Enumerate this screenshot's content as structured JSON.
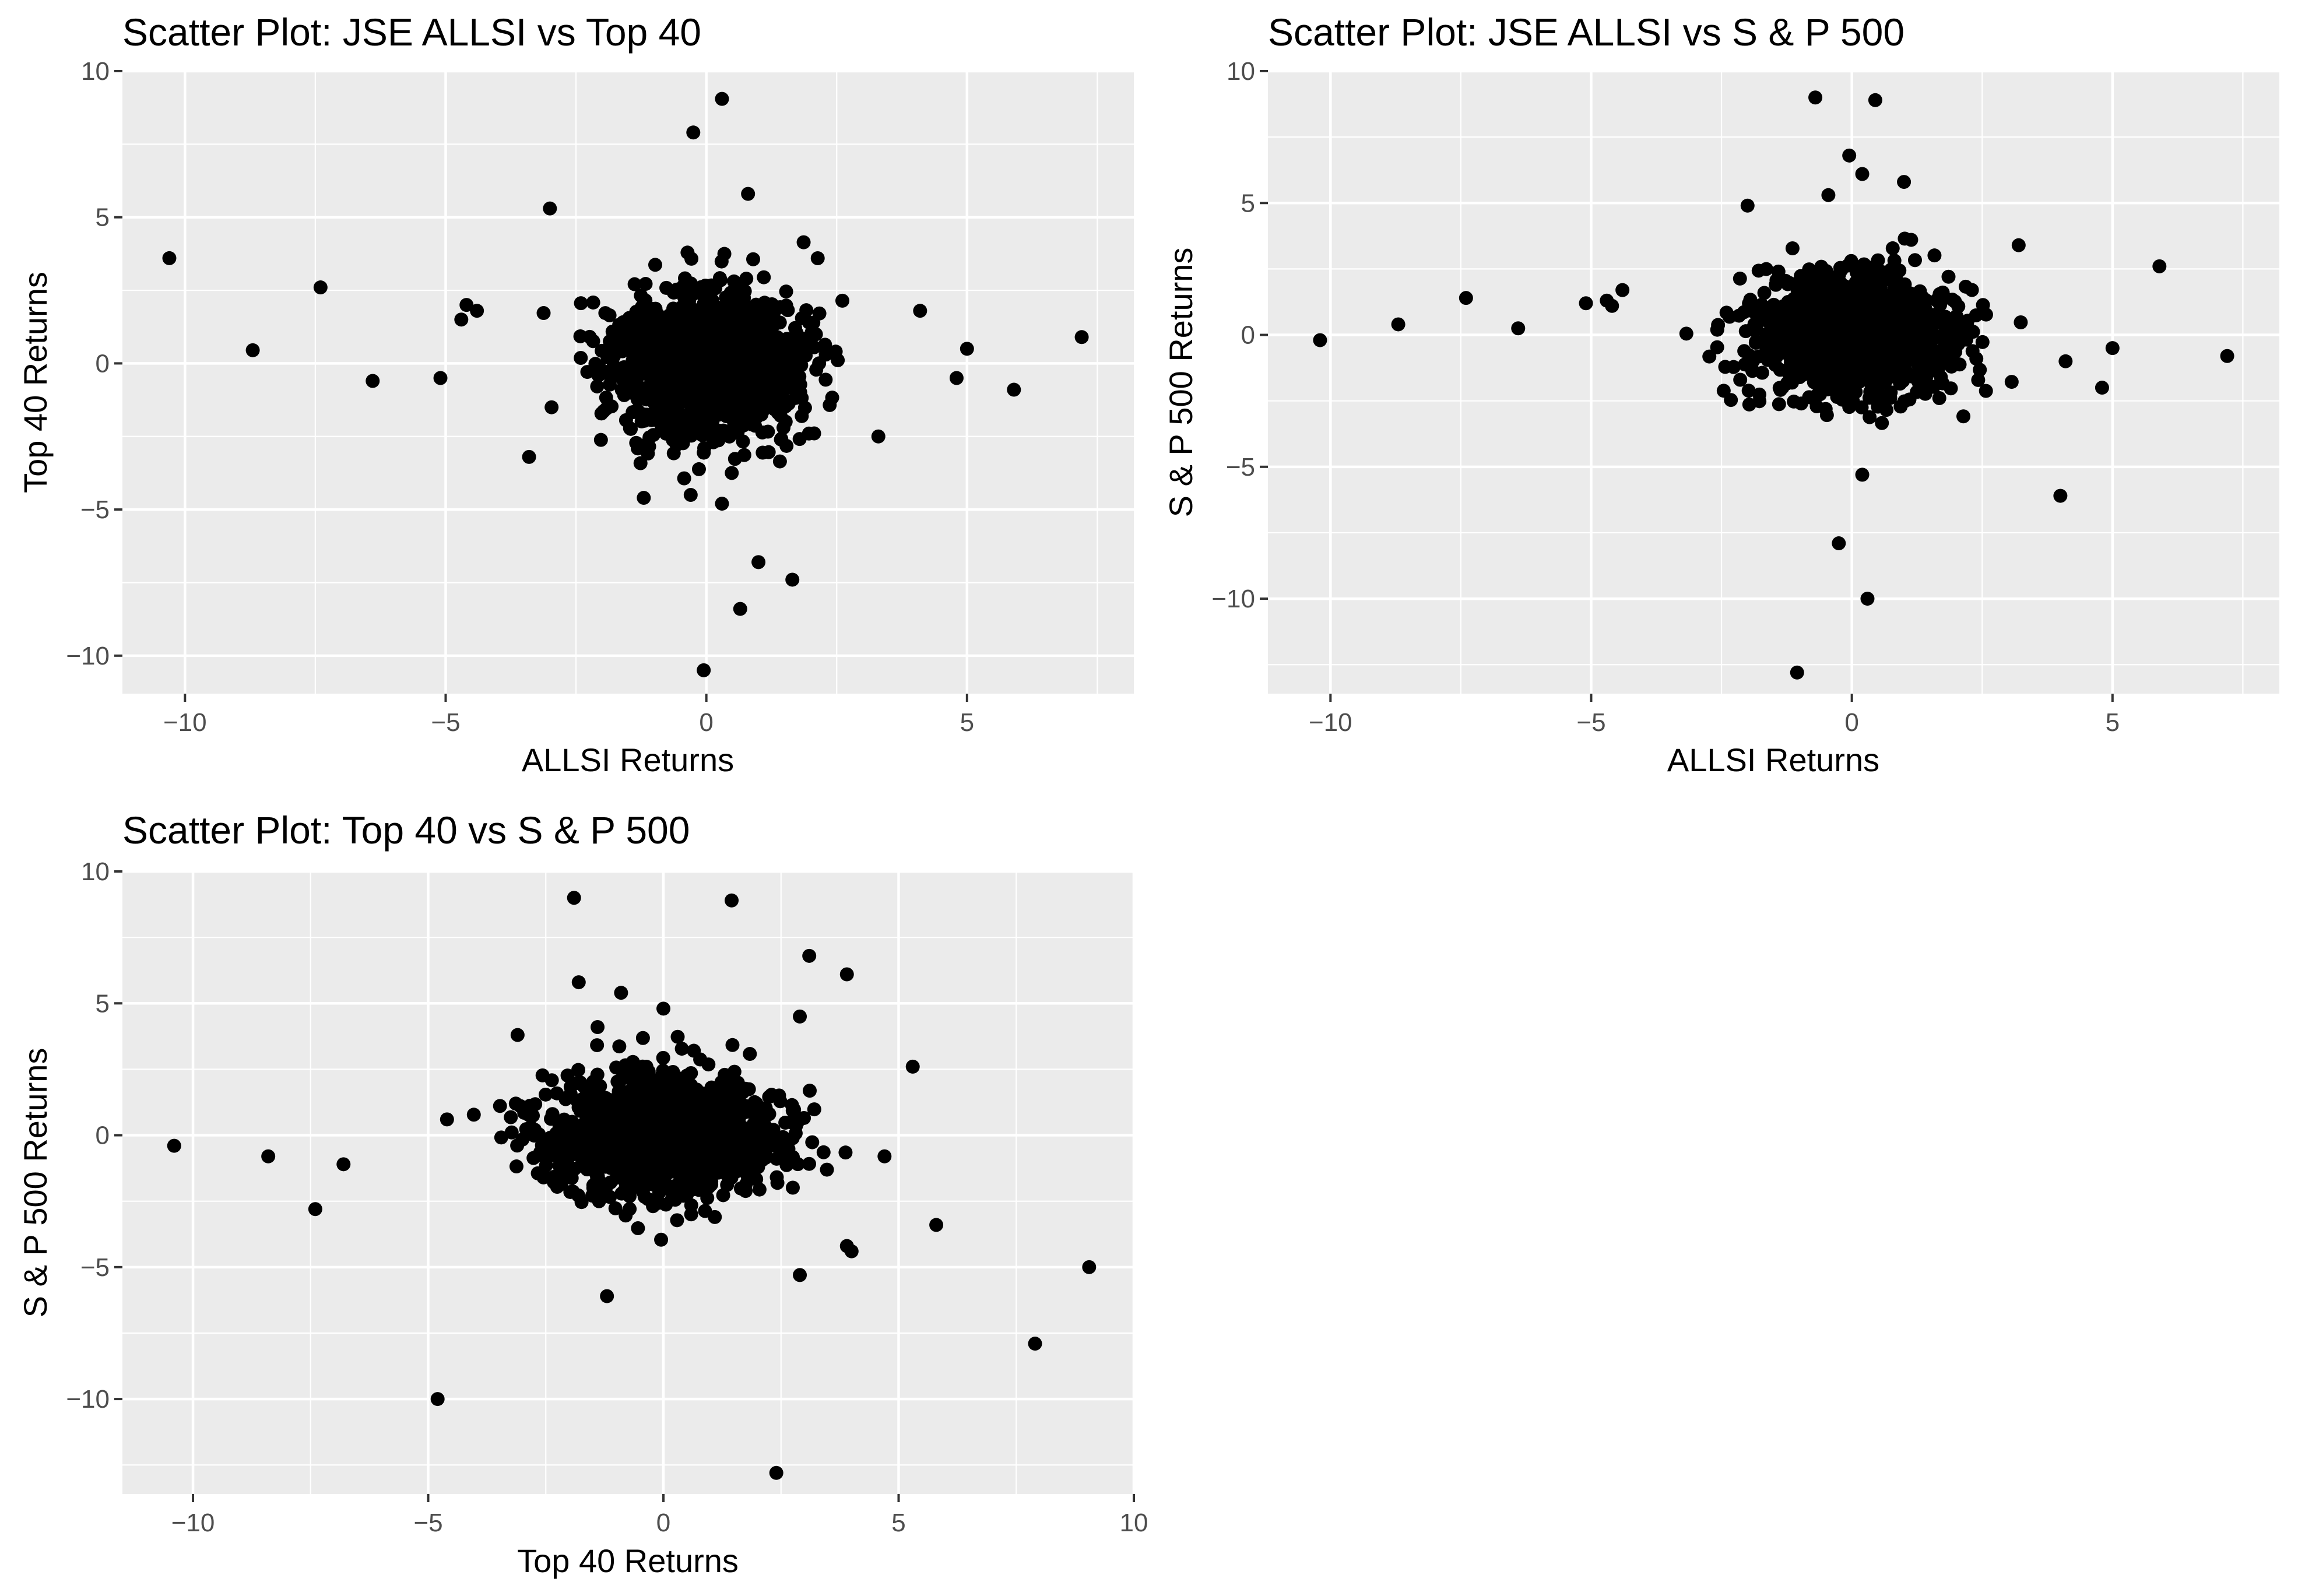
{
  "chart_data": [
    {
      "type": "scatter",
      "title": "Scatter Plot: JSE ALLSI vs Top 40",
      "xlabel": "ALLSI Returns",
      "ylabel": "Top 40 Returns",
      "xlim": [
        -11.2,
        8.2
      ],
      "ylim": [
        -11.3,
        10.0
      ],
      "xticks": [
        -10,
        -5,
        0,
        5
      ],
      "xtick_labels": [
        "−10",
        "−5",
        "0",
        "5"
      ],
      "yticks": [
        -10,
        -5,
        0,
        5,
        10
      ],
      "ytick_labels": [
        "−10",
        "−5",
        "0",
        "5",
        "10"
      ],
      "grid": true,
      "cluster": {
        "n": 1500,
        "sx": 0.9,
        "sy": 1.2,
        "seed": 11
      },
      "points": [
        [
          -10.3,
          3.6
        ],
        [
          -8.7,
          0.45
        ],
        [
          -7.4,
          2.6
        ],
        [
          -6.4,
          -0.6
        ],
        [
          -5.1,
          -0.5
        ],
        [
          -4.7,
          1.5
        ],
        [
          -4.6,
          2.0
        ],
        [
          -4.4,
          1.8
        ],
        [
          -3.4,
          -3.2
        ],
        [
          -3.0,
          5.3
        ],
        [
          -1.2,
          -4.6
        ],
        [
          -0.3,
          -4.5
        ],
        [
          0.3,
          -4.8
        ],
        [
          -0.25,
          7.9
        ],
        [
          0.3,
          9.05
        ],
        [
          0.8,
          5.8
        ],
        [
          1.0,
          -6.8
        ],
        [
          0.65,
          -8.4
        ],
        [
          1.65,
          -7.4
        ],
        [
          -0.05,
          -10.5
        ],
        [
          3.3,
          -2.5
        ],
        [
          4.1,
          1.8
        ],
        [
          4.8,
          -0.5
        ],
        [
          5.0,
          0.5
        ],
        [
          5.9,
          -0.9
        ],
        [
          7.2,
          0.9
        ]
      ]
    },
    {
      "type": "scatter",
      "title": "Scatter Plot: JSE ALLSI vs S & P 500",
      "xlabel": "ALLSI Returns",
      "ylabel": "S & P 500 Returns",
      "xlim": [
        -11.2,
        8.2
      ],
      "ylim": [
        -13.6,
        10.0
      ],
      "xticks": [
        -10,
        -5,
        0,
        5
      ],
      "xtick_labels": [
        "−10",
        "−5",
        "0",
        "5"
      ],
      "yticks": [
        -10,
        -5,
        0,
        5,
        10
      ],
      "ytick_labels": [
        "−10",
        "−5",
        "0",
        "5",
        "10"
      ],
      "grid": true,
      "cluster": {
        "n": 1500,
        "sx": 0.9,
        "sy": 1.1,
        "seed": 23
      },
      "points": [
        [
          -10.2,
          -0.2
        ],
        [
          -8.7,
          0.4
        ],
        [
          -7.4,
          1.4
        ],
        [
          -6.4,
          0.25
        ],
        [
          -5.1,
          1.2
        ],
        [
          -4.7,
          1.3
        ],
        [
          -4.6,
          1.1
        ],
        [
          -4.4,
          1.7
        ],
        [
          -0.7,
          9.0
        ],
        [
          0.45,
          8.9
        ],
        [
          -0.45,
          5.3
        ],
        [
          -0.05,
          6.8
        ],
        [
          0.2,
          6.1
        ],
        [
          1.0,
          5.8
        ],
        [
          -2.0,
          4.9
        ],
        [
          -0.25,
          -7.9
        ],
        [
          0.3,
          -10.0
        ],
        [
          -1.05,
          -12.8
        ],
        [
          0.2,
          -5.3
        ],
        [
          4.0,
          -6.1
        ],
        [
          4.8,
          -2.0
        ],
        [
          4.1,
          -1.0
        ],
        [
          5.0,
          -0.5
        ],
        [
          5.9,
          2.6
        ],
        [
          7.2,
          -0.8
        ],
        [
          3.2,
          3.4
        ]
      ]
    },
    {
      "type": "scatter",
      "title": "Scatter Plot: Top 40 vs S & P 500",
      "xlabel": "Top 40 Returns",
      "ylabel": "S & P 500 Returns",
      "xlim": [
        -11.5,
        10.0
      ],
      "ylim": [
        -13.6,
        10.0
      ],
      "xticks": [
        -10,
        -5,
        0,
        5,
        10
      ],
      "xtick_labels": [
        "−10",
        "−5",
        "0",
        "5",
        "10"
      ],
      "yticks": [
        -10,
        -5,
        0,
        5,
        10
      ],
      "ytick_labels": [
        "−10",
        "−5",
        "0",
        "5",
        "10"
      ],
      "grid": true,
      "cluster": {
        "n": 1500,
        "sx": 1.2,
        "sy": 1.1,
        "seed": 37
      },
      "points": [
        [
          -10.4,
          -0.4
        ],
        [
          -8.4,
          -0.8
        ],
        [
          -7.4,
          -2.8
        ],
        [
          -6.8,
          -1.1
        ],
        [
          -4.8,
          -10.0
        ],
        [
          -4.6,
          0.6
        ],
        [
          -1.9,
          9.0
        ],
        [
          1.45,
          8.9
        ],
        [
          -1.8,
          5.8
        ],
        [
          -0.9,
          5.4
        ],
        [
          -1.4,
          4.1
        ],
        [
          3.1,
          6.8
        ],
        [
          3.9,
          6.1
        ],
        [
          2.9,
          4.5
        ],
        [
          -1.2,
          -6.1
        ],
        [
          2.4,
          -12.8
        ],
        [
          2.9,
          -5.3
        ],
        [
          3.9,
          -4.2
        ],
        [
          4.0,
          -4.4
        ],
        [
          5.3,
          2.6
        ],
        [
          5.8,
          -3.4
        ],
        [
          7.9,
          -7.9
        ],
        [
          9.05,
          -5.0
        ],
        [
          4.7,
          -0.8
        ],
        [
          -3.1,
          3.8
        ],
        [
          0.0,
          4.8
        ]
      ]
    }
  ]
}
